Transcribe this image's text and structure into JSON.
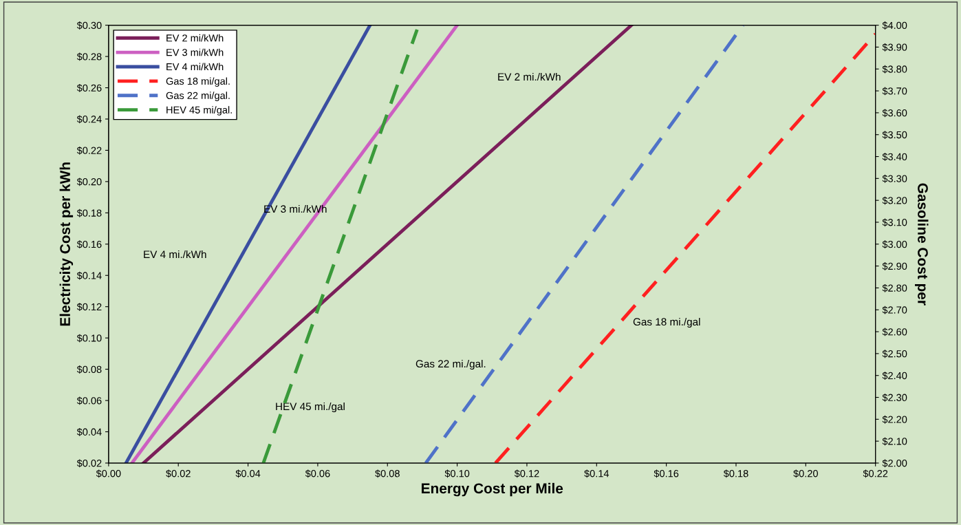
{
  "chart_data": {
    "type": "line",
    "xlabel": "Energy Cost per Mile",
    "ylabel": "Electricity Cost per kWh",
    "y2label": "Gasoline Cost per",
    "xlim": [
      0,
      0.22
    ],
    "ylim": [
      0.02,
      0.3
    ],
    "y2lim": [
      2.0,
      4.0
    ],
    "xticks": [
      {
        "value": 0,
        "label": "$0.00"
      },
      {
        "value": 0.02,
        "label": "$0.02"
      },
      {
        "value": 0.04,
        "label": "$0.04"
      },
      {
        "value": 0.06,
        "label": "$0.06"
      },
      {
        "value": 0.08,
        "label": "$0.08"
      },
      {
        "value": 0.1,
        "label": "$0.10"
      },
      {
        "value": 0.12,
        "label": "$0.12"
      },
      {
        "value": 0.14,
        "label": "$0.14"
      },
      {
        "value": 0.16,
        "label": "$0.16"
      },
      {
        "value": 0.18,
        "label": "$0.18"
      },
      {
        "value": 0.2,
        "label": "$0.20"
      },
      {
        "value": 0.22,
        "label": "$0.22"
      }
    ],
    "yticks": [
      {
        "value": 0.02,
        "label": "$0.02"
      },
      {
        "value": 0.04,
        "label": "$0.04"
      },
      {
        "value": 0.06,
        "label": "$0.06"
      },
      {
        "value": 0.08,
        "label": "$0.08"
      },
      {
        "value": 0.1,
        "label": "$0.10"
      },
      {
        "value": 0.12,
        "label": "$0.12"
      },
      {
        "value": 0.14,
        "label": "$0.14"
      },
      {
        "value": 0.16,
        "label": "$0.16"
      },
      {
        "value": 0.18,
        "label": "$0.18"
      },
      {
        "value": 0.2,
        "label": "$0.20"
      },
      {
        "value": 0.22,
        "label": "$0.22"
      },
      {
        "value": 0.24,
        "label": "$0.24"
      },
      {
        "value": 0.26,
        "label": "$0.26"
      },
      {
        "value": 0.28,
        "label": "$0.28"
      },
      {
        "value": 0.3,
        "label": "$0.30"
      }
    ],
    "y2ticks": [
      {
        "value": 2.0,
        "label": "$2.00"
      },
      {
        "value": 2.1,
        "label": "$2.10"
      },
      {
        "value": 2.2,
        "label": "$2.20"
      },
      {
        "value": 2.3,
        "label": "$2.30"
      },
      {
        "value": 2.4,
        "label": "$2.40"
      },
      {
        "value": 2.5,
        "label": "$2.50"
      },
      {
        "value": 2.6,
        "label": "$2.60"
      },
      {
        "value": 2.7,
        "label": "$2.70"
      },
      {
        "value": 2.8,
        "label": "$2.80"
      },
      {
        "value": 2.9,
        "label": "$2.90"
      },
      {
        "value": 3.0,
        "label": "$3.00"
      },
      {
        "value": 3.1,
        "label": "$3.10"
      },
      {
        "value": 3.2,
        "label": "$3.20"
      },
      {
        "value": 3.3,
        "label": "$3.30"
      },
      {
        "value": 3.4,
        "label": "$3.40"
      },
      {
        "value": 3.5,
        "label": "$3.50"
      },
      {
        "value": 3.6,
        "label": "$3.60"
      },
      {
        "value": 3.7,
        "label": "$3.70"
      },
      {
        "value": 3.8,
        "label": "$3.80"
      },
      {
        "value": 3.9,
        "label": "$3.90"
      },
      {
        "value": 4.0,
        "label": "$4.00"
      }
    ],
    "grid": false,
    "legend": "top left",
    "marker": "none",
    "series": [
      {
        "name": "EV 2 mi/kWh",
        "color": "#7b1f5a",
        "x": [
          0.01,
          0.15
        ],
        "values": [
          0.02,
          0.3
        ],
        "line_style": "solid"
      },
      {
        "name": "EV 3 mi/kWh",
        "color": "#cc5fc1",
        "x": [
          0.0067,
          0.1
        ],
        "values": [
          0.02,
          0.3
        ],
        "line_style": "solid"
      },
      {
        "name": "EV 4 mi/kWh",
        "color": "#3a4ea0",
        "x": [
          0.005,
          0.075
        ],
        "values": [
          0.02,
          0.3
        ],
        "line_style": "solid"
      },
      {
        "name": "Gas 18 mi/gal.",
        "color": "#ff2020",
        "x": [
          0.111,
          0.22
        ],
        "values": [
          2.0,
          3.96
        ],
        "axis": "y2",
        "line_style": "dashed"
      },
      {
        "name": "Gas 22 mi/gal.",
        "color": "#4f72c8",
        "x": [
          0.091,
          0.182
        ],
        "values": [
          2.0,
          4.0
        ],
        "axis": "y2",
        "line_style": "dashed"
      },
      {
        "name": "HEV 45 mi/gal.",
        "color": "#3a9a3a",
        "x": [
          0.0444,
          0.0885
        ],
        "values": [
          2.0,
          3.98
        ],
        "axis": "y2",
        "line_style": "dashed"
      }
    ],
    "annotations": [
      "EV 2 mi./kWh",
      "EV 3 mi./kWh",
      "EV 4 mi./kWh",
      "Gas 18 mi./gal",
      "Gas 22 mi./gal.",
      "HEV 45 mi./gal"
    ]
  }
}
